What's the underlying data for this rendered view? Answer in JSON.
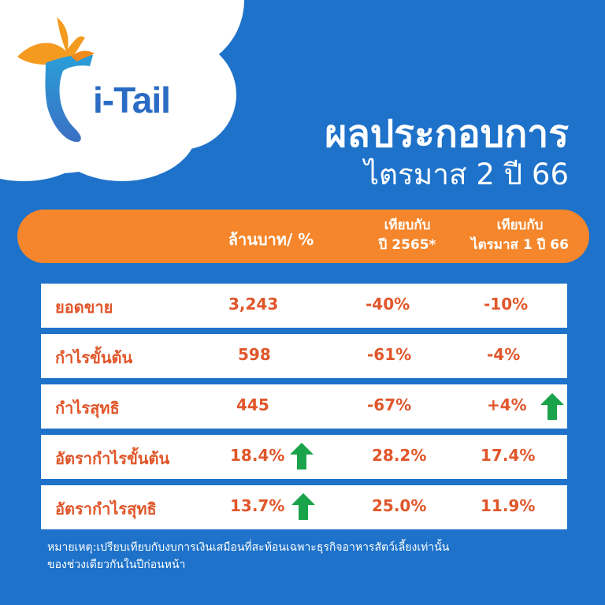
{
  "brand": {
    "name": "i-Tail"
  },
  "heading": {
    "title": "ผลประกอบการ",
    "subtitle": "ไตรมาส 2 ปี 66"
  },
  "table": {
    "headers": {
      "units": "ล้านบาท/ %",
      "col2_line1": "เทียบกับ",
      "col2_line2": "ปี 2565*",
      "col3_line1": "เทียบกับ",
      "col3_line2": "ไตรมาส 1 ปี 66"
    },
    "rows": [
      {
        "label": "ยอดขาย",
        "value": "3,243",
        "vs_2565": "-40%",
        "vs_q1": "-10%"
      },
      {
        "label": "กำไรขั้นต้น",
        "value": "598",
        "vs_2565": "-61%",
        "vs_q1": "-4%"
      },
      {
        "label": "กำไรสุทธิ",
        "value": "445",
        "vs_2565": "-67%",
        "vs_q1": "+4%",
        "arrow_q1": "up-arrow-icon"
      },
      {
        "label": "อัตรากำไรขั้นต้น",
        "value": "18.4%",
        "vs_2565": "28.2%",
        "vs_q1": "17.4%",
        "arrow_value": "up-arrow-icon"
      },
      {
        "label": "อัตรากำไรสุทธิ",
        "value": "13.7%",
        "vs_2565": "25.0%",
        "vs_q1": "11.9%",
        "arrow_value": "up-arrow-icon"
      }
    ]
  },
  "note": {
    "line1": "หมายเหตุ:เปรียบเทียบกับงบการเงินเสมือนที่สะท้อนเฉพาะธุรกิจอาหารสัตว์เลี้ยงเท่านั้น",
    "line2": "ของช่วงเดียวกันในปีก่อนหน้า"
  },
  "colors": {
    "background": "#1e72c9",
    "header": "#f5862b",
    "value_text": "#e0562a",
    "arrow": "#1aa34a"
  }
}
